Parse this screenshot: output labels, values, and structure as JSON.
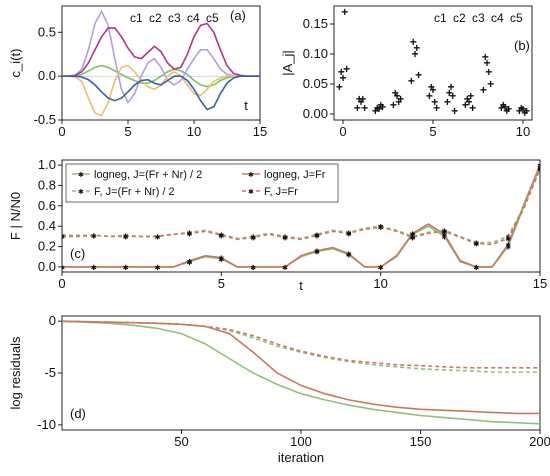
{
  "chart_data": [
    {
      "panel": "(a)",
      "type": "line",
      "ylabel": "c_i(t)",
      "x_annotation": "t",
      "xlim": [
        0,
        15
      ],
      "ylim": [
        -0.5,
        0.8
      ],
      "xticks": [
        0,
        5,
        10,
        15
      ],
      "yticks": [
        -0.5,
        0.0,
        0.5
      ],
      "legend": [
        "c1",
        "c2",
        "c3",
        "c4",
        "c5"
      ],
      "legend_placement": "top-right",
      "series": [
        {
          "name": "c1",
          "color": "#7bbf6a",
          "x": [
            0,
            0.5,
            1,
            1.5,
            2,
            2.5,
            3,
            3.5,
            4,
            4.5,
            5,
            5.5,
            6,
            6.5,
            7,
            7.5,
            8,
            8.5,
            9,
            9.5,
            10,
            10.5,
            11,
            11.5,
            12,
            12.5,
            13,
            13.5,
            14,
            14.5,
            15
          ],
          "y": [
            0,
            0,
            0,
            0.02,
            0.06,
            0.1,
            0.12,
            0.1,
            0.06,
            0.02,
            -0.02,
            -0.05,
            -0.08,
            -0.08,
            -0.05,
            0,
            0.05,
            0.08,
            0.06,
            0.02,
            -0.05,
            -0.1,
            -0.12,
            -0.1,
            -0.05,
            -0.02,
            0,
            0,
            0,
            0,
            0
          ]
        },
        {
          "name": "c2",
          "color": "#b39fd6",
          "x": [
            0,
            0.5,
            1,
            1.5,
            2,
            2.5,
            3,
            3.5,
            4,
            4.5,
            5,
            5.5,
            6,
            6.5,
            7,
            7.5,
            8,
            8.5,
            9,
            9.5,
            10,
            10.5,
            11,
            11.5,
            12,
            12.5,
            13,
            13.5,
            14,
            14.5,
            15
          ],
          "y": [
            0,
            0,
            0.01,
            0.08,
            0.3,
            0.6,
            0.74,
            0.58,
            0.2,
            -0.15,
            -0.3,
            -0.2,
            0,
            0.15,
            0.2,
            0.1,
            -0.05,
            -0.1,
            -0.05,
            0.08,
            0.2,
            0.3,
            0.3,
            0.2,
            0.08,
            0.02,
            0,
            0,
            0,
            0,
            0
          ]
        },
        {
          "name": "c3",
          "color": "#e8c170",
          "x": [
            0,
            0.5,
            1,
            1.5,
            2,
            2.5,
            3,
            3.5,
            4,
            4.5,
            5,
            5.5,
            6,
            6.5,
            7,
            7.5,
            8,
            8.5,
            9,
            9.5,
            10,
            10.5,
            11,
            11.5,
            12,
            12.5,
            13,
            13.5,
            14,
            14.5,
            15
          ],
          "y": [
            0,
            0,
            -0.01,
            -0.06,
            -0.25,
            -0.42,
            -0.45,
            -0.3,
            -0.05,
            0.1,
            0.12,
            0.05,
            -0.05,
            -0.12,
            -0.15,
            -0.1,
            0,
            0.05,
            0,
            -0.1,
            -0.2,
            -0.22,
            -0.15,
            -0.06,
            -0.02,
            0,
            0,
            0,
            0,
            0,
            0
          ]
        },
        {
          "name": "c4",
          "color": "#b0348a",
          "x": [
            0,
            0.5,
            1,
            1.5,
            2,
            2.5,
            3,
            3.5,
            4,
            4.5,
            5,
            5.5,
            6,
            6.5,
            7,
            7.5,
            8,
            8.5,
            9,
            9.5,
            10,
            10.5,
            11,
            11.5,
            12,
            12.5,
            13,
            13.5,
            14,
            14.5,
            15
          ],
          "y": [
            0,
            0,
            0.01,
            0.05,
            0.15,
            0.3,
            0.45,
            0.55,
            0.55,
            0.45,
            0.32,
            0.22,
            0.2,
            0.27,
            0.34,
            0.28,
            0.15,
            0.08,
            0.1,
            0.25,
            0.45,
            0.58,
            0.6,
            0.5,
            0.3,
            0.12,
            0.03,
            0.01,
            0,
            0,
            0
          ]
        },
        {
          "name": "c5",
          "color": "#3a5fa8",
          "x": [
            0,
            0.5,
            1,
            1.5,
            2,
            2.5,
            3,
            3.5,
            4,
            4.5,
            5,
            5.5,
            6,
            6.5,
            7,
            7.5,
            8,
            8.5,
            9,
            9.5,
            10,
            10.5,
            11,
            11.5,
            12,
            12.5,
            13,
            13.5,
            14,
            14.5,
            15
          ],
          "y": [
            0,
            0,
            0,
            -0.01,
            -0.04,
            -0.1,
            -0.18,
            -0.25,
            -0.28,
            -0.25,
            -0.18,
            -0.1,
            -0.05,
            -0.04,
            -0.08,
            -0.1,
            -0.05,
            0,
            0,
            -0.05,
            -0.15,
            -0.28,
            -0.38,
            -0.35,
            -0.2,
            -0.08,
            -0.02,
            0,
            0,
            0,
            0
          ]
        }
      ]
    },
    {
      "panel": "(b)",
      "type": "scatter",
      "ylabel": "|A_j|",
      "xlim": [
        -0.5,
        10.5
      ],
      "ylim": [
        -0.01,
        0.18
      ],
      "xticks": [
        0,
        5,
        10
      ],
      "yticks": [
        0.0,
        0.05,
        0.1,
        0.15
      ],
      "legend": [
        "c1",
        "c2",
        "c3",
        "c4",
        "c5"
      ],
      "legend_placement": "top-right",
      "x": [
        0,
        1,
        2,
        3,
        4,
        5,
        6,
        7,
        8,
        9,
        10
      ],
      "series": [
        {
          "name": "c1",
          "color": "#7bbf6a",
          "values": [
            0.045,
            0.01,
            0.005,
            0.015,
            0.055,
            0.03,
            0.02,
            0.015,
            0.04,
            0.01,
            0.005
          ]
        },
        {
          "name": "c2",
          "color": "#b39fd6",
          "values": [
            0.07,
            0.025,
            0.01,
            0.035,
            0.12,
            0.045,
            0.035,
            0.025,
            0.095,
            0.015,
            0.01
          ]
        },
        {
          "name": "c3",
          "color": "#e8c170",
          "values": [
            0.06,
            0.02,
            0.008,
            0.03,
            0.1,
            0.04,
            0.045,
            0.02,
            0.085,
            0.012,
            0.008
          ]
        },
        {
          "name": "c4",
          "color": "#b0348a",
          "values": [
            0.17,
            0.025,
            0.015,
            0.02,
            0.11,
            0.02,
            0.03,
            0.03,
            0.07,
            0.005,
            0.002
          ]
        },
        {
          "name": "c5",
          "color": "#3a5fa8",
          "values": [
            0.075,
            0.01,
            0.012,
            0.025,
            0.065,
            0.01,
            0.005,
            0.01,
            0.05,
            0.008,
            0.005
          ]
        }
      ]
    },
    {
      "panel": "(c)",
      "type": "line",
      "ylabel": "F | N/N0",
      "x_annotation": "t",
      "xlim": [
        0,
        15
      ],
      "ylim": [
        -0.05,
        1.05
      ],
      "xticks": [
        0,
        5,
        10,
        15
      ],
      "yticks": [
        0.0,
        0.2,
        0.4,
        0.6,
        0.8,
        1.0
      ],
      "legend_placement": "top-left",
      "x": [
        0,
        0.5,
        1,
        1.5,
        2,
        2.5,
        3,
        3.5,
        4,
        4.5,
        5,
        5.5,
        6,
        6.5,
        7,
        7.5,
        8,
        8.5,
        9,
        9.5,
        10,
        10.5,
        11,
        11.5,
        12,
        12.5,
        13,
        13.5,
        14,
        14.5,
        15
      ],
      "series": [
        {
          "name": "logneg, J=(Fr + Nr) / 2",
          "color": "#8fc07a",
          "dashed": false,
          "values": [
            0,
            0,
            0,
            0,
            0,
            0,
            0,
            0,
            0.05,
            0.1,
            0.08,
            0,
            0,
            0,
            0,
            0.1,
            0.15,
            0.18,
            0.12,
            0,
            0,
            0.1,
            0.32,
            0.4,
            0.3,
            0.05,
            0,
            0,
            0.2,
            0.6,
            1.0
          ]
        },
        {
          "name": "logneg, J=Fr",
          "color": "#c9785f",
          "dashed": false,
          "values": [
            0,
            0,
            0,
            0,
            0,
            0,
            0,
            0,
            0.06,
            0.11,
            0.09,
            0,
            0,
            0,
            0,
            0.11,
            0.16,
            0.19,
            0.13,
            0,
            0,
            0.11,
            0.33,
            0.42,
            0.32,
            0.06,
            0,
            0,
            0.22,
            0.62,
            1.0
          ]
        },
        {
          "name": "F, J=(Fr + Nr) / 2",
          "color": "#8fc07a",
          "dashed": true,
          "values": [
            0.31,
            0.31,
            0.31,
            0.3,
            0.31,
            0.3,
            0.3,
            0.32,
            0.34,
            0.36,
            0.32,
            0.28,
            0.3,
            0.33,
            0.3,
            0.28,
            0.32,
            0.36,
            0.34,
            0.38,
            0.4,
            0.36,
            0.3,
            0.34,
            0.36,
            0.3,
            0.24,
            0.24,
            0.3,
            0.6,
            0.97
          ]
        },
        {
          "name": "F, J=Fr",
          "color": "#c9785f",
          "dashed": true,
          "values": [
            0.3,
            0.3,
            0.31,
            0.3,
            0.3,
            0.3,
            0.3,
            0.32,
            0.33,
            0.35,
            0.31,
            0.27,
            0.29,
            0.32,
            0.29,
            0.27,
            0.31,
            0.35,
            0.33,
            0.37,
            0.39,
            0.35,
            0.29,
            0.33,
            0.35,
            0.29,
            0.23,
            0.22,
            0.28,
            0.58,
            0.96
          ]
        }
      ]
    },
    {
      "panel": "(d)",
      "type": "line",
      "xlabel": "iteration",
      "ylabel": "log residuals",
      "xlim": [
        0,
        200
      ],
      "ylim": [
        -10.5,
        0.5
      ],
      "xticks": [
        50,
        100,
        150,
        200
      ],
      "yticks": [
        0,
        -5,
        -10
      ],
      "x": [
        0,
        10,
        20,
        30,
        40,
        50,
        60,
        70,
        80,
        90,
        100,
        110,
        120,
        130,
        140,
        150,
        160,
        170,
        180,
        190,
        200
      ],
      "series": [
        {
          "name": "logneg, J=(Fr + Nr) / 2",
          "color": "#8fc07a",
          "dashed": false,
          "values": [
            0,
            -0.1,
            -0.2,
            -0.4,
            -0.7,
            -1.2,
            -2.2,
            -3.6,
            -5.0,
            -6.1,
            -7.0,
            -7.6,
            -8.1,
            -8.5,
            -8.8,
            -9.1,
            -9.3,
            -9.5,
            -9.7,
            -9.8,
            -9.9
          ]
        },
        {
          "name": "logneg, J=Fr",
          "color": "#c9785f",
          "dashed": false,
          "values": [
            0,
            -0.05,
            -0.1,
            -0.15,
            -0.2,
            -0.3,
            -0.5,
            -1.2,
            -3.0,
            -5.0,
            -6.2,
            -7.0,
            -7.6,
            -8.0,
            -8.3,
            -8.5,
            -8.6,
            -8.7,
            -8.8,
            -8.9,
            -8.9
          ]
        },
        {
          "name": "F, J=(Fr + Nr) / 2",
          "color": "#8fc07a",
          "dashed": true,
          "values": [
            0,
            -0.05,
            -0.1,
            -0.15,
            -0.2,
            -0.3,
            -0.5,
            -0.9,
            -1.6,
            -2.4,
            -3.0,
            -3.5,
            -3.9,
            -4.2,
            -4.4,
            -4.6,
            -4.7,
            -4.8,
            -4.9,
            -4.9,
            -4.9
          ]
        },
        {
          "name": "F, J=Fr",
          "color": "#c9785f",
          "dashed": true,
          "values": [
            0,
            -0.05,
            -0.1,
            -0.15,
            -0.2,
            -0.3,
            -0.5,
            -0.8,
            -1.4,
            -2.2,
            -2.9,
            -3.4,
            -3.8,
            -4.0,
            -4.2,
            -4.3,
            -4.4,
            -4.5,
            -4.5,
            -4.5,
            -4.5
          ]
        }
      ]
    }
  ]
}
